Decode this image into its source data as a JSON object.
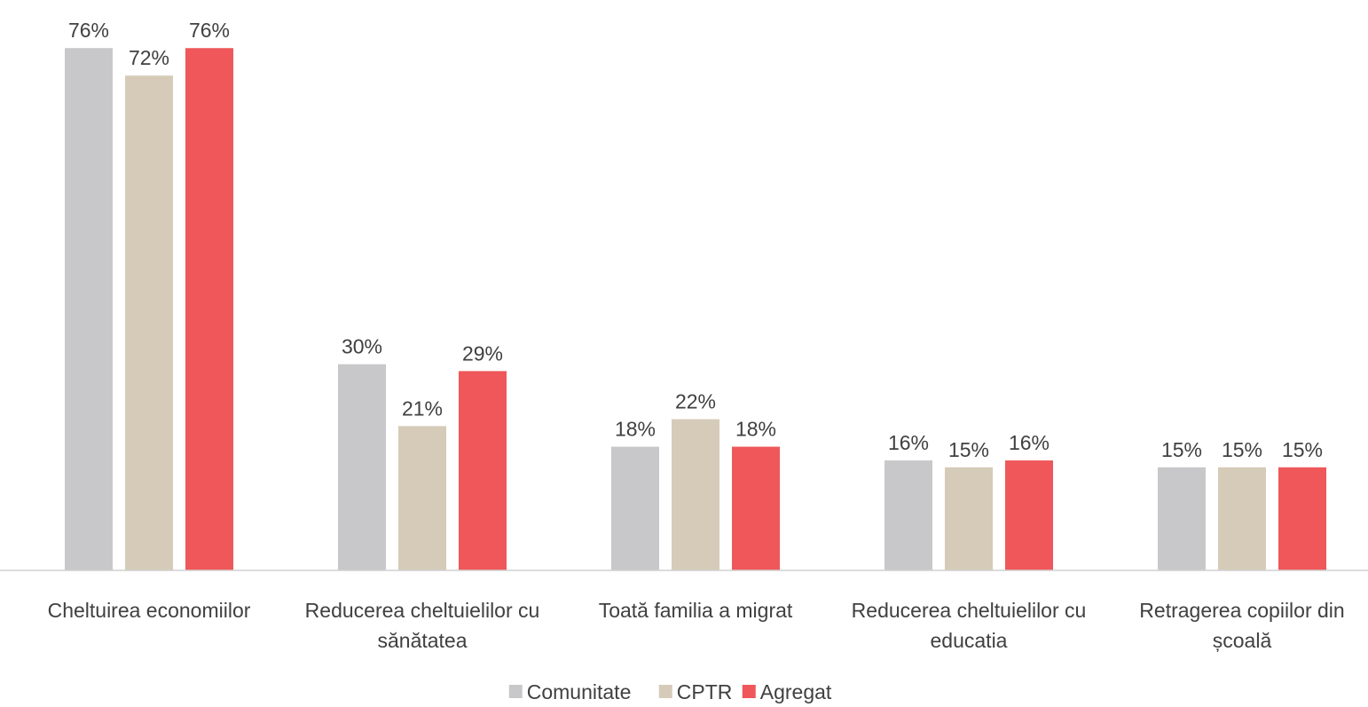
{
  "chart_data": {
    "type": "bar",
    "categories": [
      "Cheltuirea economiilor",
      "Reducerea cheltuielilor cu sănătatea",
      "Toată familia a migrat",
      "Reducerea cheltuielilor cu educatia",
      "Retragerea copiilor din școală"
    ],
    "series": [
      {
        "name": "Comunitate",
        "color": "#c8c8ca",
        "values": [
          76,
          30,
          18,
          16,
          15
        ],
        "value_labels": [
          "76%",
          "30%",
          "18%",
          "16%",
          "15%"
        ]
      },
      {
        "name": "CPTR",
        "color": "#d5cbb8",
        "values": [
          72,
          21,
          22,
          15,
          15
        ],
        "value_labels": [
          "72%",
          "21%",
          "22%",
          "15%",
          "15%"
        ]
      },
      {
        "name": "Agregat",
        "color": "#ef575a",
        "values": [
          76,
          29,
          18,
          16,
          15
        ],
        "value_labels": [
          "76%",
          "29%",
          "18%",
          "16%",
          "15%"
        ]
      }
    ],
    "ylim": [
      0,
      83
    ],
    "legend": "bottom"
  }
}
